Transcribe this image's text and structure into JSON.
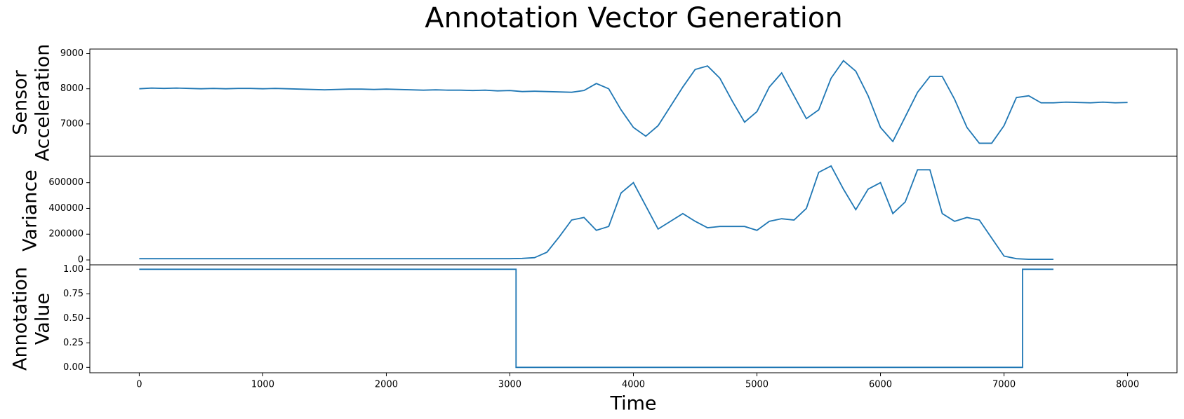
{
  "title": "Annotation Vector Generation",
  "chart_data": [
    {
      "type": "line",
      "ylabel": [
        "Sensor",
        "Acceleration"
      ],
      "color": "#1f77b4",
      "xlim": [
        -400,
        8400
      ],
      "ylim": [
        6080,
        9130
      ],
      "yticks": [
        7000,
        8000,
        9000
      ],
      "x": [
        0,
        100,
        200,
        300,
        400,
        500,
        600,
        700,
        800,
        900,
        1000,
        1100,
        1200,
        1300,
        1400,
        1500,
        1600,
        1700,
        1800,
        1900,
        2000,
        2100,
        2200,
        2300,
        2400,
        2500,
        2600,
        2700,
        2800,
        2900,
        3000,
        3100,
        3200,
        3300,
        3400,
        3500,
        3600,
        3700,
        3800,
        3900,
        4000,
        4100,
        4200,
        4300,
        4400,
        4500,
        4600,
        4700,
        4800,
        4900,
        5000,
        5100,
        5200,
        5300,
        5400,
        5500,
        5600,
        5700,
        5800,
        5900,
        6000,
        6100,
        6200,
        6300,
        6400,
        6500,
        6600,
        6700,
        6800,
        6900,
        7000,
        7100,
        7200,
        7300,
        7400,
        7500,
        7600,
        7700,
        7800,
        7900,
        8000
      ],
      "values": [
        8000,
        8020,
        8010,
        8020,
        8010,
        8000,
        8010,
        8000,
        8010,
        8010,
        8000,
        8010,
        8000,
        7990,
        7980,
        7970,
        7980,
        7990,
        7990,
        7980,
        7990,
        7980,
        7970,
        7960,
        7970,
        7960,
        7960,
        7950,
        7960,
        7940,
        7950,
        7920,
        7930,
        7920,
        7910,
        7900,
        7950,
        8150,
        8000,
        7400,
        6900,
        6650,
        6950,
        7500,
        8050,
        8550,
        8650,
        8300,
        7650,
        7050,
        7350,
        8050,
        8450,
        7800,
        7150,
        7400,
        8300,
        8800,
        8500,
        7800,
        6900,
        6500,
        7200,
        7900,
        8350,
        8350,
        7700,
        6900,
        6450,
        6450,
        6950,
        7750,
        7800,
        7600,
        7600,
        7620,
        7610,
        7600,
        7620,
        7600,
        7610
      ]
    },
    {
      "type": "line",
      "ylabel": [
        "Variance"
      ],
      "color": "#1f77b4",
      "xlim": [
        -400,
        8400
      ],
      "ylim": [
        -38000,
        805000
      ],
      "yticks": [
        0,
        200000,
        400000,
        600000
      ],
      "x": [
        0,
        100,
        200,
        300,
        400,
        500,
        600,
        700,
        800,
        900,
        1000,
        1100,
        1200,
        1300,
        1400,
        1500,
        1600,
        1700,
        1800,
        1900,
        2000,
        2100,
        2200,
        2300,
        2400,
        2500,
        2600,
        2700,
        2800,
        2900,
        3000,
        3100,
        3200,
        3300,
        3400,
        3500,
        3600,
        3700,
        3800,
        3900,
        4000,
        4100,
        4200,
        4300,
        4400,
        4500,
        4600,
        4700,
        4800,
        4900,
        5000,
        5100,
        5200,
        5300,
        5400,
        5500,
        5600,
        5700,
        5800,
        5900,
        6000,
        6100,
        6200,
        6300,
        6400,
        6500,
        6600,
        6700,
        6800,
        6900,
        7000,
        7100,
        7200,
        7300,
        7400
      ],
      "values": [
        10000,
        10000,
        10000,
        10000,
        10000,
        10000,
        10000,
        10000,
        10000,
        10000,
        10000,
        10000,
        10000,
        10000,
        10000,
        10000,
        10000,
        10000,
        10000,
        10000,
        10000,
        10000,
        10000,
        10000,
        10000,
        10000,
        10000,
        10000,
        10000,
        10000,
        10000,
        12000,
        18000,
        60000,
        180000,
        310000,
        330000,
        230000,
        260000,
        520000,
        600000,
        420000,
        240000,
        300000,
        360000,
        300000,
        250000,
        260000,
        260000,
        260000,
        230000,
        300000,
        320000,
        310000,
        400000,
        680000,
        730000,
        550000,
        390000,
        550000,
        600000,
        360000,
        450000,
        700000,
        700000,
        360000,
        300000,
        330000,
        310000,
        170000,
        30000,
        10000,
        5000,
        5000,
        5000
      ]
    },
    {
      "type": "line",
      "ylabel": [
        "Annotation",
        "Value"
      ],
      "xlabel": "Time",
      "color": "#1f77b4",
      "xlim": [
        -400,
        8400
      ],
      "ylim": [
        -0.055,
        1.045
      ],
      "yticks": [
        {
          "value": 0,
          "label": "0.00"
        },
        {
          "value": 0.25,
          "label": "0.25"
        },
        {
          "value": 0.5,
          "label": "0.50"
        },
        {
          "value": 0.75,
          "label": "0.75"
        },
        {
          "value": 1,
          "label": "1.00"
        }
      ],
      "xticks": [
        0,
        1000,
        2000,
        3000,
        4000,
        5000,
        6000,
        7000,
        8000
      ],
      "x": [
        0,
        3050,
        3050,
        7150,
        7150,
        7400
      ],
      "values": [
        1,
        1,
        0,
        0,
        1,
        1
      ]
    }
  ]
}
